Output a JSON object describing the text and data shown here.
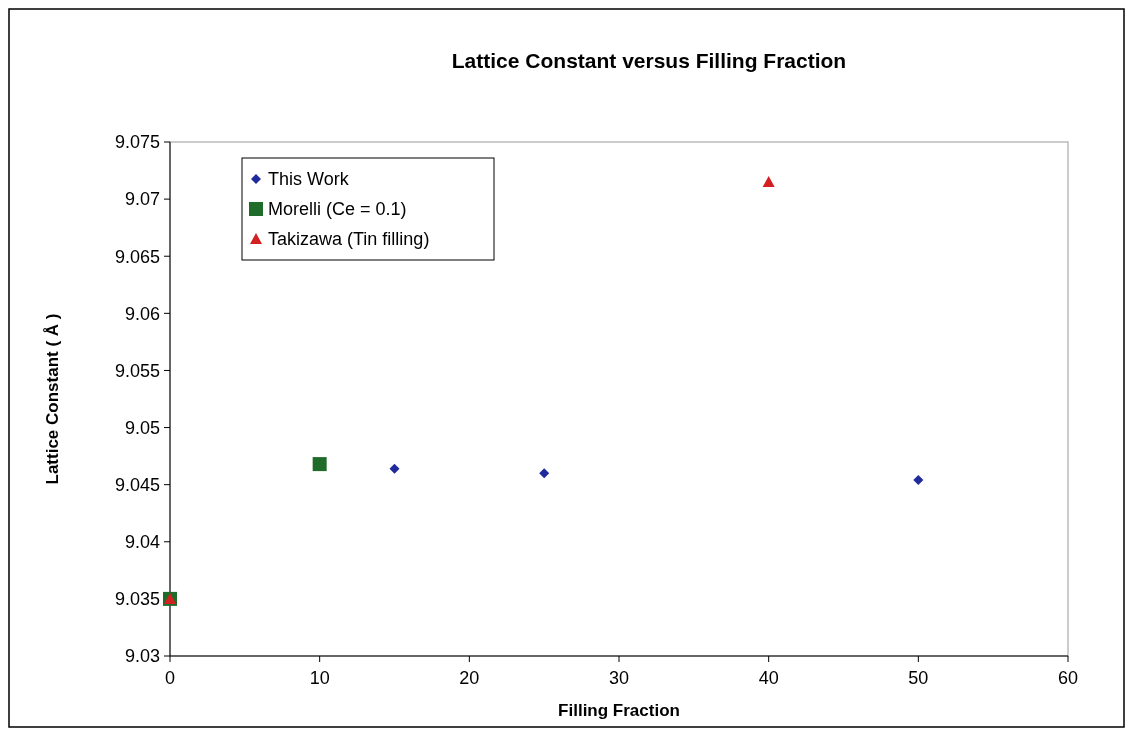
{
  "chart_data": {
    "type": "scatter",
    "title": "Lattice Constant versus Filling Fraction",
    "xlabel": "Filling Fraction",
    "ylabel": "Lattice Constant ( Å )",
    "xlim": [
      0,
      60
    ],
    "xticks": [
      0,
      10,
      20,
      30,
      40,
      50,
      60
    ],
    "ylim": [
      9.03,
      9.075
    ],
    "yticks": [
      {
        "value": 9.03,
        "label": "9.03"
      },
      {
        "value": 9.035,
        "label": "9.035"
      },
      {
        "value": 9.04,
        "label": "9.04"
      },
      {
        "value": 9.045,
        "label": "9.045"
      },
      {
        "value": 9.05,
        "label": "9.05"
      },
      {
        "value": 9.055,
        "label": "9.055"
      },
      {
        "value": 9.06,
        "label": "9.06"
      },
      {
        "value": 9.065,
        "label": "9.065"
      },
      {
        "value": 9.07,
        "label": "9.07"
      },
      {
        "value": 9.075,
        "label": "9.075"
      }
    ],
    "grid": false,
    "legend": "top left",
    "series": [
      {
        "name": "This Work",
        "color": "#1f2a9c",
        "marker": "diamond",
        "x": [
          15,
          25,
          50
        ],
        "values": [
          9.0464,
          9.046,
          9.0454
        ]
      },
      {
        "name": "Morelli (Ce = 0.1)",
        "color": "#1e6b2a",
        "marker": "square",
        "x": [
          0,
          10
        ],
        "values": [
          9.035,
          9.0468
        ]
      },
      {
        "name": "Takizawa (Tin filling)",
        "color": "#d42020",
        "marker": "triangle",
        "x": [
          0,
          40
        ],
        "values": [
          9.035,
          9.0715
        ]
      }
    ]
  }
}
